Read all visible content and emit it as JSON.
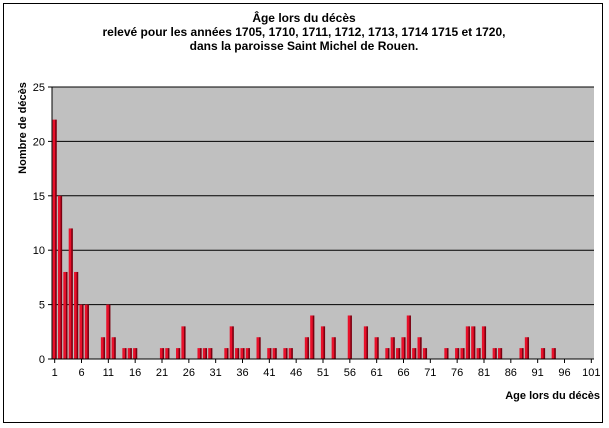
{
  "chart_data": {
    "type": "bar",
    "title_lines": [
      "Âge lors du décès",
      "relevé pour les années 1705, 1710, 1711, 1712, 1713, 1714 1715 et 1720,",
      "dans la paroisse Saint Michel de Rouen."
    ],
    "xlabel": "Age lors du décès",
    "ylabel": "Nombre de décès",
    "ylim": [
      0,
      25
    ],
    "y_ticks": [
      0,
      5,
      10,
      15,
      20,
      25
    ],
    "x_range": [
      1,
      101
    ],
    "x_tick_labels": [
      "1",
      "6",
      "11",
      "16",
      "21",
      "26",
      "31",
      "36",
      "41",
      "46",
      "51",
      "56",
      "61",
      "66",
      "71",
      "76",
      "81",
      "86",
      "91",
      "96",
      "101"
    ],
    "grid": true,
    "plot_background": "#c0c0c0",
    "bar_color": "#e8102a",
    "bar_shadow_color": "#7a0010",
    "x": [
      1,
      2,
      3,
      4,
      5,
      6,
      7,
      10,
      11,
      12,
      14,
      15,
      16,
      21,
      22,
      24,
      25,
      28,
      29,
      30,
      33,
      34,
      35,
      36,
      37,
      39,
      41,
      42,
      44,
      45,
      48,
      49,
      51,
      53,
      56,
      59,
      61,
      63,
      64,
      65,
      66,
      67,
      68,
      69,
      70,
      74,
      76,
      77,
      78,
      79,
      80,
      81,
      83,
      84,
      88,
      89,
      92,
      94
    ],
    "values": [
      22,
      15,
      8,
      12,
      8,
      5,
      5,
      2,
      5,
      2,
      1,
      1,
      1,
      1,
      1,
      1,
      3,
      1,
      1,
      1,
      1,
      3,
      1,
      1,
      1,
      2,
      1,
      1,
      1,
      1,
      2,
      4,
      3,
      2,
      4,
      3,
      2,
      1,
      2,
      1,
      2,
      4,
      1,
      2,
      1,
      1,
      1,
      1,
      3,
      3,
      1,
      3,
      1,
      1,
      1,
      2,
      1,
      1
    ]
  }
}
